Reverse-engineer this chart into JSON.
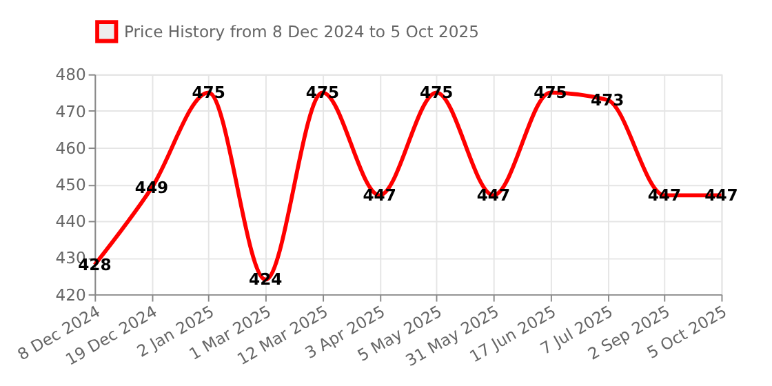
{
  "chart_data": {
    "type": "line",
    "categories": [
      "8 Dec 2024",
      "19 Dec 2024",
      "2 Jan 2025",
      "1 Mar 2025",
      "12 Mar 2025",
      "3 Apr 2025",
      "5 May 2025",
      "31 May 2025",
      "17 Jun 2025",
      "7 Jul 2025",
      "2 Sep 2025",
      "5 Oct 2025"
    ],
    "series": [
      {
        "name": "Price History from 8 Dec 2024 to 5 Oct 2025",
        "color": "#ff0000",
        "values": [
          428,
          449,
          475,
          424,
          475,
          447,
          475,
          447,
          475,
          473,
          447,
          447
        ]
      }
    ],
    "ylim": [
      420,
      480
    ],
    "yticks": [
      420,
      430,
      440,
      450,
      460,
      470,
      480
    ],
    "grid": true,
    "legend": "top",
    "data_labels": true
  }
}
